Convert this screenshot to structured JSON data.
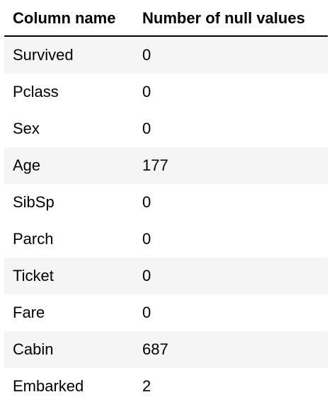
{
  "table": {
    "headers": [
      "Column name",
      "Number of null values"
    ],
    "rows": [
      {
        "column": "Survived",
        "nulls": "0"
      },
      {
        "column": "Pclass",
        "nulls": "0"
      },
      {
        "column": "Sex",
        "nulls": "0"
      },
      {
        "column": "Age",
        "nulls": "177"
      },
      {
        "column": "SibSp",
        "nulls": "0"
      },
      {
        "column": "Parch",
        "nulls": "0"
      },
      {
        "column": "Ticket",
        "nulls": "0"
      },
      {
        "column": "Fare",
        "nulls": "0"
      },
      {
        "column": "Cabin",
        "nulls": "687"
      },
      {
        "column": "Embarked",
        "nulls": "2"
      }
    ]
  },
  "colors": {
    "stripe": "#f5f5f5",
    "rule": "#000000"
  }
}
